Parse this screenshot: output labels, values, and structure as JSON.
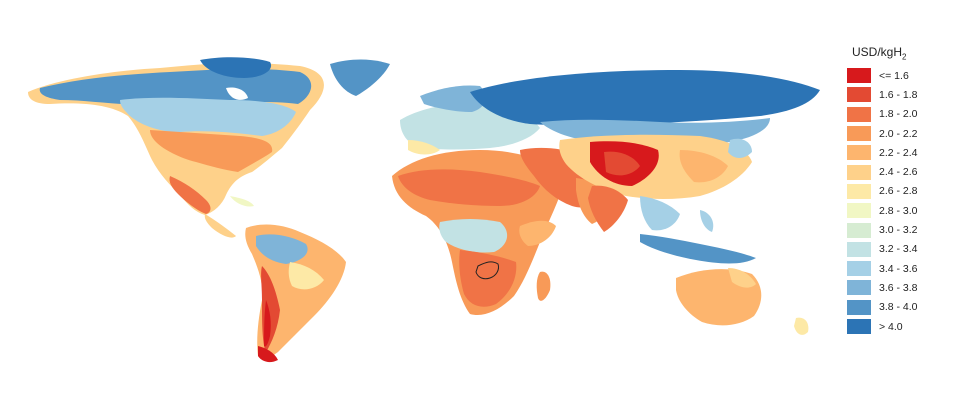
{
  "legend": {
    "title_main": "USD/kgH",
    "title_sub": "2",
    "entries": [
      {
        "label": "<= 1.6",
        "color": "#d7191c"
      },
      {
        "label": "1.6 - 1.8",
        "color": "#e34a33"
      },
      {
        "label": "1.8 - 2.0",
        "color": "#f07346"
      },
      {
        "label": "2.0 - 2.2",
        "color": "#f89a58"
      },
      {
        "label": "2.2 - 2.4",
        "color": "#fdb56e"
      },
      {
        "label": "2.4 - 2.6",
        "color": "#fed18a"
      },
      {
        "label": "2.6 - 2.8",
        "color": "#fde9a6"
      },
      {
        "label": "2.8 - 3.0",
        "color": "#f1f7c4"
      },
      {
        "label": "3.0 - 3.2",
        "color": "#d6ecd2"
      },
      {
        "label": "3.2 - 3.4",
        "color": "#c2e2e4"
      },
      {
        "label": "3.4 - 3.6",
        "color": "#a5d0e6"
      },
      {
        "label": "3.6 - 3.8",
        "color": "#7fb4d8"
      },
      {
        "label": "3.8 - 4.0",
        "color": "#5394c6"
      },
      {
        "label": "> 4.0",
        "color": "#2c74b5"
      }
    ]
  },
  "map": {
    "highlight": "country-outline-zambia"
  }
}
